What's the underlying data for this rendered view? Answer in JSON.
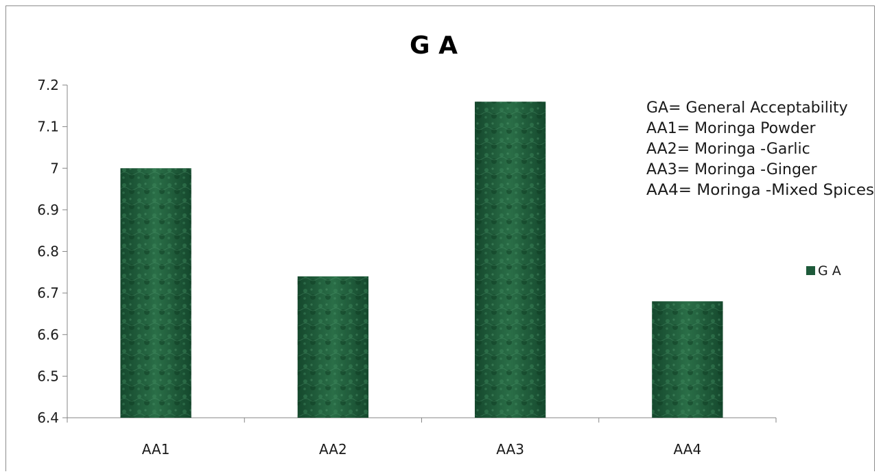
{
  "chart_data": {
    "type": "bar",
    "title": "G A",
    "xlabel": "",
    "ylabel": "",
    "categories": [
      "AA1",
      "AA2",
      "AA3",
      "AA4"
    ],
    "series": [
      {
        "name": "G A",
        "values": [
          7.0,
          6.74,
          7.16,
          6.68
        ]
      }
    ],
    "ylim": [
      6.4,
      7.2
    ],
    "yticks": [
      "6.4",
      "6.5",
      "6.6",
      "6.7",
      "6.8",
      "6.9",
      "7",
      "7.1",
      "7.2"
    ],
    "grid": false,
    "legend_position": "right",
    "bar_color": "#1e5a3a",
    "notes": [
      "GA= General Acceptability",
      "AA1= Moringa Powder",
      "AA2= Moringa -Garlic",
      "AA3= Moringa -Ginger",
      "AA4= Moringa -Mixed Spices"
    ]
  }
}
